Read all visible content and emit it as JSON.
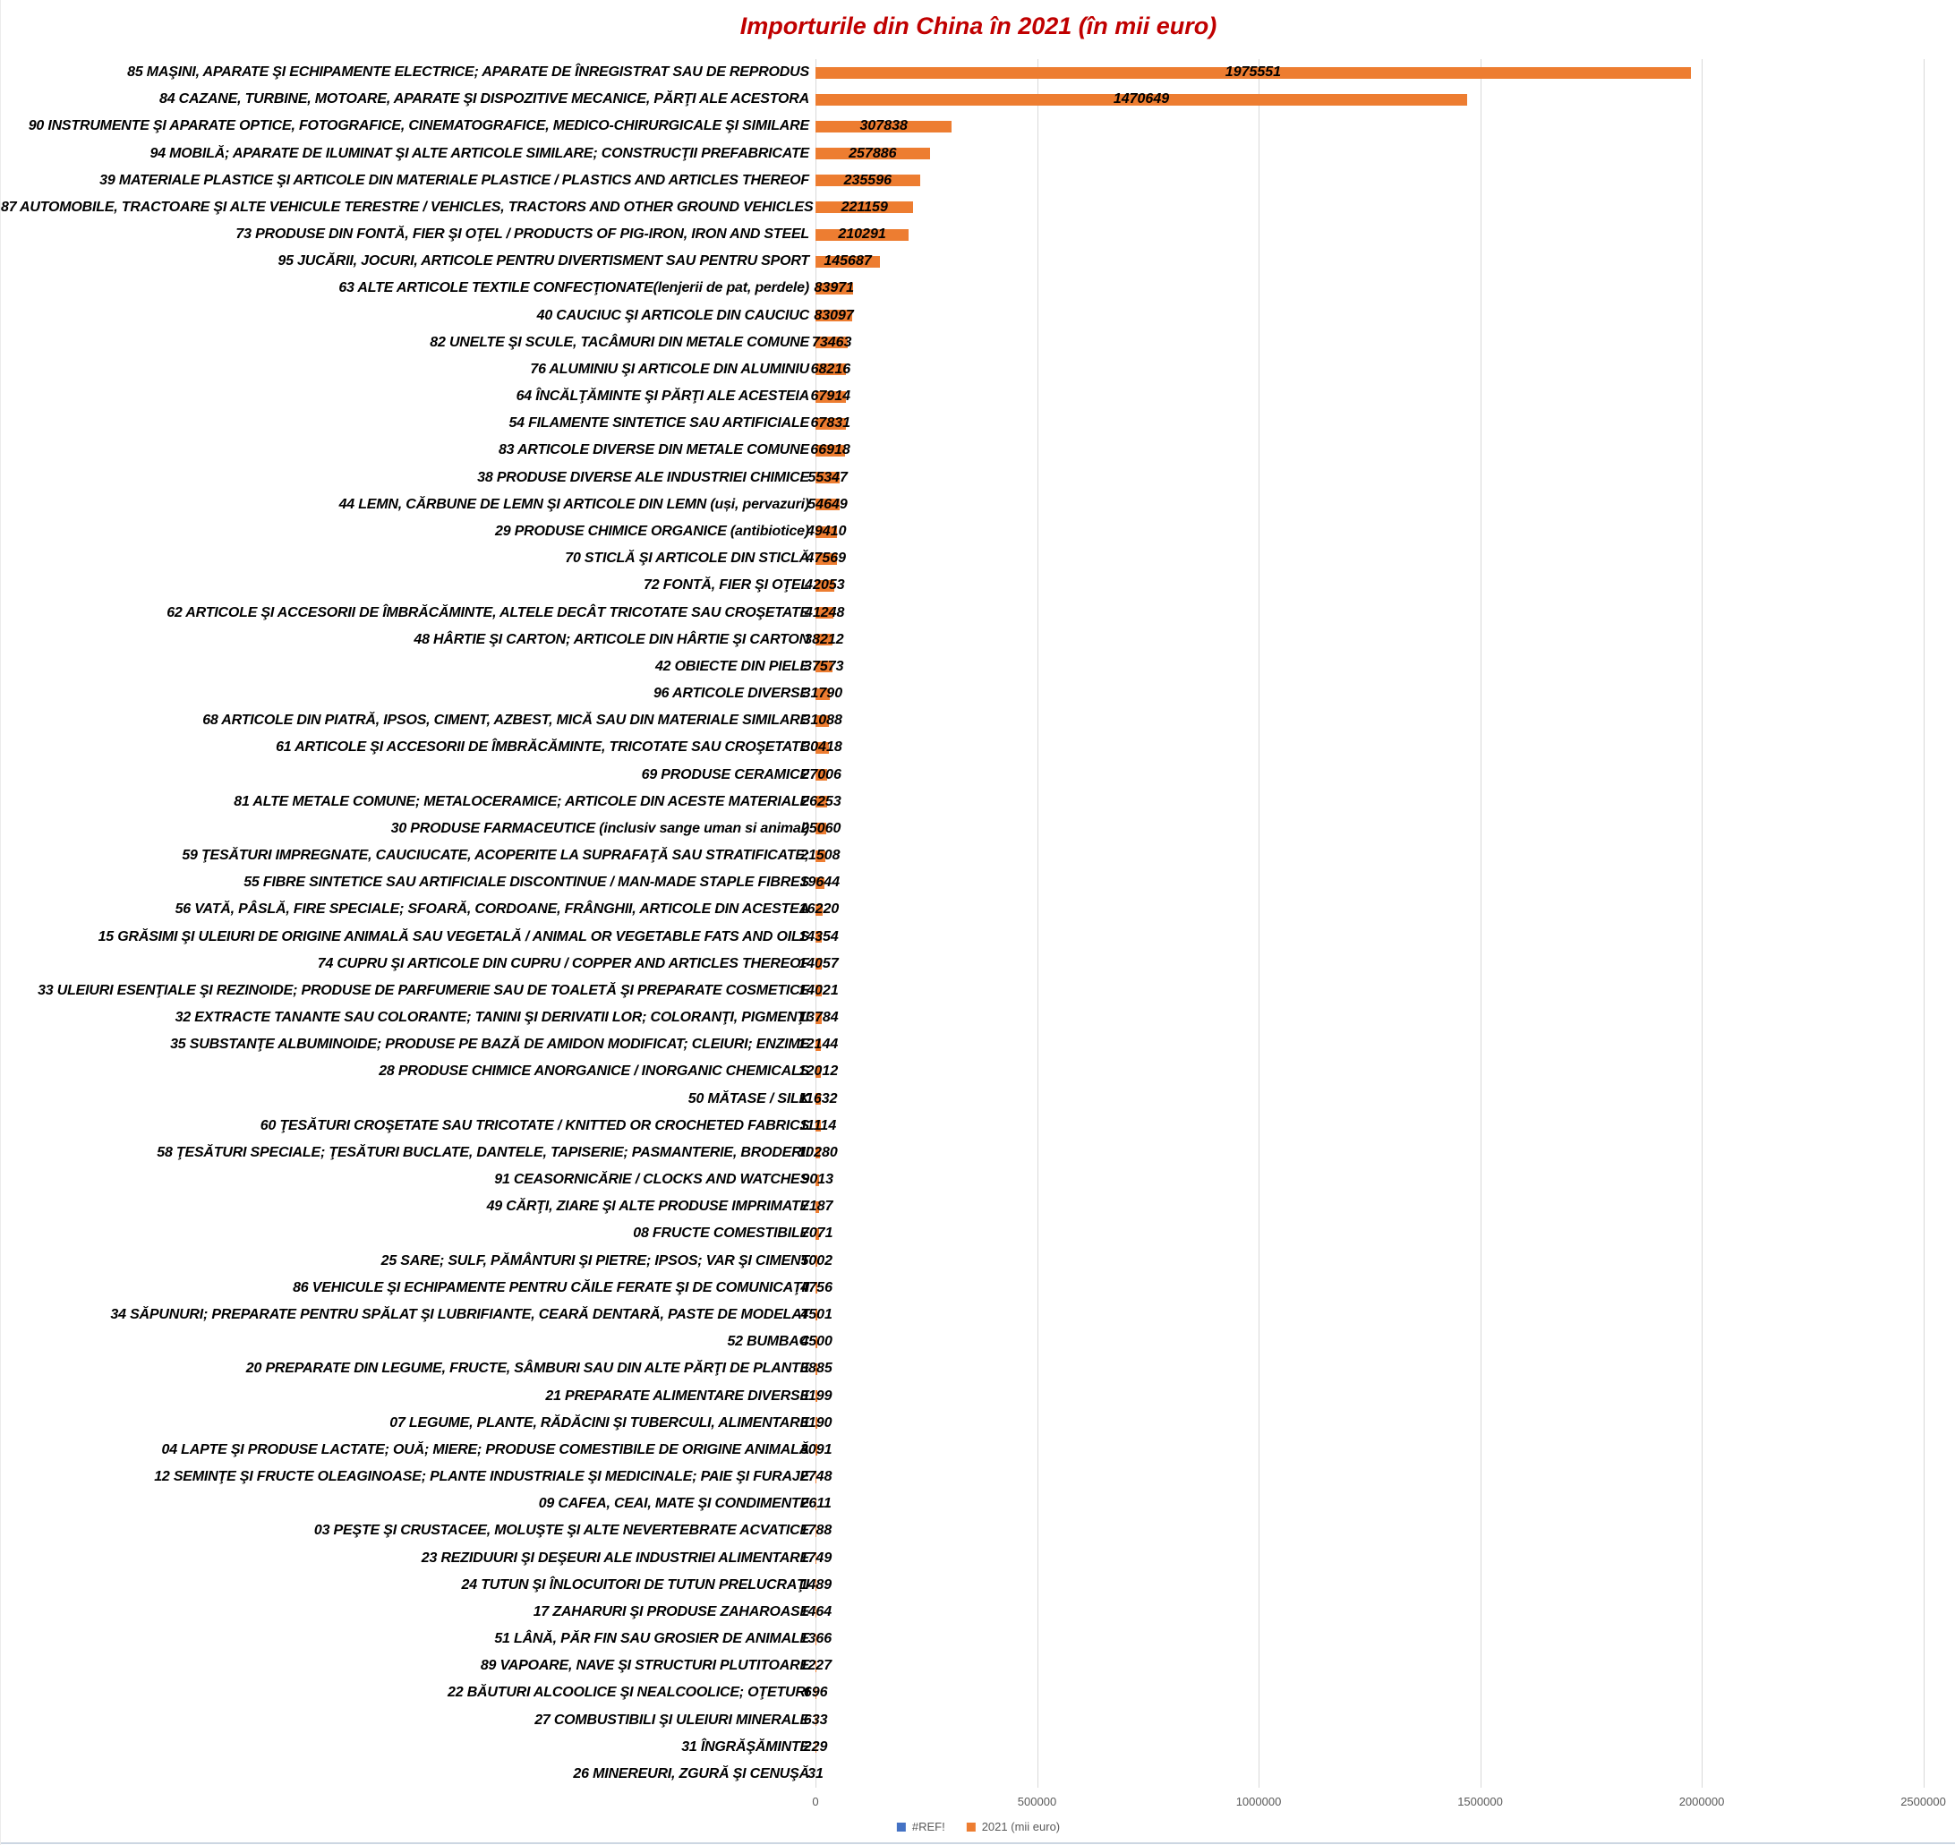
{
  "title": "Importurile din China în 2021 (în mii euro)",
  "chart_data": {
    "type": "bar",
    "orientation": "horizontal",
    "title": "Importurile din China în 2021 (în mii euro)",
    "title_color": "#C00000",
    "bar_color": "#ED7D31",
    "grid": true,
    "xlim": [
      0,
      2500000
    ],
    "x_ticks": [
      0,
      500000,
      1000000,
      1500000,
      2000000,
      2500000
    ],
    "x_tick_labels": [
      "0",
      "500000",
      "1000000",
      "1500000",
      "2000000",
      "2500000"
    ],
    "value_labels_shown": true,
    "legend_position": "bottom",
    "categories": [
      "85 MAŞINI, APARATE ŞI ECHIPAMENTE ELECTRICE; APARATE DE ÎNREGISTRAT SAU DE REPRODUS",
      "84 CAZANE, TURBINE, MOTOARE, APARATE ŞI DISPOZITIVE MECANICE, PĂRŢI ALE ACESTORA",
      "90 INSTRUMENTE ŞI APARATE OPTICE, FOTOGRAFICE, CINEMATOGRAFICE, MEDICO-CHIRURGICALE ŞI SIMILARE",
      "94 MOBILĂ; APARATE DE ILUMINAT ŞI ALTE ARTICOLE SIMILARE; CONSTRUCŢII PREFABRICATE",
      "39 MATERIALE PLASTICE ŞI ARTICOLE DIN MATERIALE PLASTICE / PLASTICS AND ARTICLES THEREOF",
      "87 AUTOMOBILE, TRACTOARE ŞI ALTE VEHICULE TERESTRE / VEHICLES, TRACTORS AND OTHER GROUND VEHICLES",
      "73 PRODUSE DIN FONTĂ, FIER ŞI OŢEL / PRODUCTS OF PIG-IRON, IRON AND STEEL",
      "95 JUCĂRII, JOCURI, ARTICOLE PENTRU DIVERTISMENT SAU PENTRU SPORT",
      "63 ALTE ARTICOLE TEXTILE CONFECŢIONATE(lenjerii de pat, perdele)",
      "40 CAUCIUC ŞI ARTICOLE DIN CAUCIUC",
      "82 UNELTE ŞI SCULE, TACÂMURI DIN METALE COMUNE",
      "76 ALUMINIU ŞI ARTICOLE DIN ALUMINIU",
      "64 ÎNCĂLŢĂMINTE ŞI PĂRŢI ALE ACESTEIA",
      "54 FILAMENTE SINTETICE SAU ARTIFICIALE",
      "83 ARTICOLE DIVERSE DIN METALE COMUNE",
      "38 PRODUSE DIVERSE ALE INDUSTRIEI CHIMICE",
      "44 LEMN, CĂRBUNE DE LEMN ŞI ARTICOLE DIN LEMN (uși, pervazuri)",
      "29 PRODUSE CHIMICE ORGANICE (antibiotice)",
      "70 STICLĂ ŞI ARTICOLE DIN STICLĂ",
      "72 FONTĂ, FIER ŞI OŢEL",
      "62 ARTICOLE ŞI ACCESORII DE ÎMBRĂCĂMINTE, ALTELE DECÂT TRICOTATE SAU CROŞETATE",
      "48 HÂRTIE ŞI CARTON; ARTICOLE DIN HÂRTIE ŞI CARTON",
      "42 OBIECTE DIN PIELE",
      "96 ARTICOLE DIVERSE",
      "68 ARTICOLE DIN PIATRĂ, IPSOS, CIMENT, AZBEST, MICĂ SAU DIN MATERIALE SIMILARE",
      "61 ARTICOLE ŞI ACCESORII DE ÎMBRĂCĂMINTE, TRICOTATE SAU CROŞETATE",
      "69 PRODUSE CERAMICE",
      "81 ALTE METALE COMUNE; METALOCERAMICE; ARTICOLE DIN ACESTE MATERIALE",
      "30 PRODUSE FARMACEUTICE (inclusiv sange uman si animal)",
      "59 ŢESĂTURI IMPREGNATE, CAUCIUCATE, ACOPERITE LA SUPRAFAŢĂ SAU STRATIFICATE;",
      "55 FIBRE SINTETICE SAU ARTIFICIALE DISCONTINUE / MAN-MADE STAPLE FIBRES",
      "56 VATĂ, PÂSLĂ, FIRE SPECIALE; SFOARĂ, CORDOANE, FRÂNGHII, ARTICOLE DIN ACESTEA",
      "15 GRĂSIMI ŞI ULEIURI DE ORIGINE ANIMALĂ SAU VEGETALĂ / ANIMAL OR VEGETABLE FATS AND OILS",
      "74 CUPRU ŞI ARTICOLE DIN CUPRU / COPPER AND ARTICLES THEREOF",
      "33 ULEIURI ESENŢIALE ŞI REZINOIDE; PRODUSE DE PARFUMERIE SAU DE TOALETĂ ŞI PREPARATE COSMETICE",
      "32 EXTRACTE TANANTE SAU COLORANTE; TANINI ŞI DERIVATII LOR; COLORANŢI, PIGMENŢI",
      "35 SUBSTANŢE ALBUMINOIDE; PRODUSE PE BAZĂ DE AMIDON MODIFICAT; CLEIURI; ENZIME",
      "28 PRODUSE CHIMICE ANORGANICE / INORGANIC CHEMICALS",
      "50 MĂTASE / SILK",
      "60 ŢESĂTURI CROŞETATE SAU TRICOTATE / KNITTED OR CROCHETED FABRICS",
      "58 ŢESĂTURI SPECIALE; ŢESĂTURI BUCLATE, DANTELE, TAPISERIE; PASMANTERIE, BRODERII",
      "91 CEASORNICĂRIE / CLOCKS AND WATCHES",
      "49 CĂRŢI, ZIARE ŞI ALTE PRODUSE IMPRIMATE",
      "08 FRUCTE COMESTIBILE",
      "25 SARE; SULF, PĂMÂNTURI ŞI PIETRE; IPSOS; VAR ŞI CIMENT",
      "86 VEHICULE ŞI ECHIPAMENTE PENTRU CĂILE FERATE ŞI DE COMUNICAŢII",
      "34 SĂPUNURI; PREPARATE PENTRU SPĂLAT ŞI LUBRIFIANTE, CEARĂ DENTARĂ, PASTE DE MODELAT",
      "52 BUMBAC",
      "20 PREPARATE DIN LEGUME, FRUCTE, SÂMBURI SAU DIN ALTE PĂRŢI DE PLANTE",
      "21 PREPARATE ALIMENTARE DIVERSE",
      "07 LEGUME, PLANTE, RĂDĂCINI ŞI TUBERCULI, ALIMENTARE",
      "04 LAPTE ŞI PRODUSE LACTATE; OUĂ; MIERE; PRODUSE COMESTIBILE DE ORIGINE ANIMALĂ",
      "12 SEMINŢE ŞI FRUCTE OLEAGINOASE; PLANTE INDUSTRIALE ŞI MEDICINALE; PAIE ŞI FURAJE",
      "09 CAFEA, CEAI, MATE ŞI CONDIMENTE",
      "03 PEŞTE ŞI CRUSTACEE, MOLUŞTE ŞI ALTE NEVERTEBRATE ACVATICE",
      "23 REZIDUURI ŞI DEŞEURI ALE INDUSTRIEI ALIMENTARE",
      "24 TUTUN ŞI ÎNLOCUITORI DE TUTUN PRELUCRAŢI",
      "17 ZAHARURI ŞI PRODUSE ZAHAROASE",
      "51 LÂNĂ, PĂR FIN SAU GROSIER DE ANIMALE",
      "89 VAPOARE, NAVE ŞI STRUCTURI PLUTITOARE",
      "22 BĂUTURI ALCOOLICE ŞI NEALCOOLICE; OŢETURI",
      "27 COMBUSTIBILI ŞI ULEIURI MINERALE",
      "31 ÎNGRĂŞĂMINTE",
      "26 MINEREURI, ZGURĂ ŞI CENUŞĂ"
    ],
    "values": [
      1975551,
      1470649,
      307838,
      257886,
      235596,
      221159,
      210291,
      145687,
      83971,
      83097,
      73463,
      68216,
      67914,
      67831,
      66918,
      55347,
      54649,
      49410,
      47569,
      42053,
      41248,
      38212,
      37573,
      31790,
      31088,
      30418,
      27006,
      26253,
      25060,
      21508,
      19644,
      16220,
      14354,
      14057,
      14021,
      13784,
      12144,
      12012,
      11632,
      11114,
      10280,
      9013,
      7187,
      7071,
      5002,
      4756,
      4501,
      4500,
      3885,
      3199,
      3190,
      3091,
      2748,
      2611,
      1788,
      1749,
      1489,
      1464,
      1366,
      1227,
      696,
      633,
      229,
      31
    ]
  },
  "legend": {
    "items": [
      {
        "label": "#REF!",
        "color": "#4472C4"
      },
      {
        "label": "2021  (mii euro)",
        "color": "#ED7D31"
      }
    ]
  }
}
